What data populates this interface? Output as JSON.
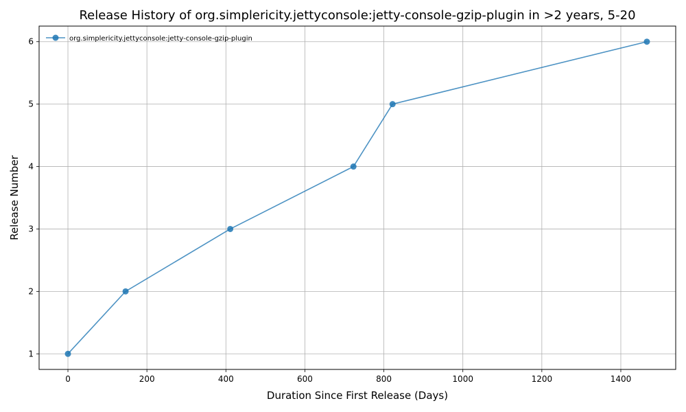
{
  "chart_data": {
    "type": "line",
    "title": "Release History of org.simplericity.jettyconsole:jetty-console-gzip-plugin in >2 years, 5-20",
    "xlabel": "Duration Since First Release (Days)",
    "ylabel": "Release Number",
    "xlim": [
      -73,
      1539
    ],
    "ylim": [
      0.75,
      6.25
    ],
    "xticks": [
      0,
      200,
      400,
      600,
      800,
      1000,
      1200,
      1400
    ],
    "yticks": [
      1,
      2,
      3,
      4,
      5,
      6
    ],
    "grid": true,
    "legend_position": "upper-left",
    "series": [
      {
        "name": "org.simplericity.jettyconsole:jetty-console-gzip-plugin",
        "color": "#1f77b4",
        "marker": "circle",
        "x": [
          0,
          146,
          411,
          723,
          822,
          1466
        ],
        "y": [
          1,
          2,
          3,
          4,
          5,
          6
        ]
      }
    ]
  }
}
